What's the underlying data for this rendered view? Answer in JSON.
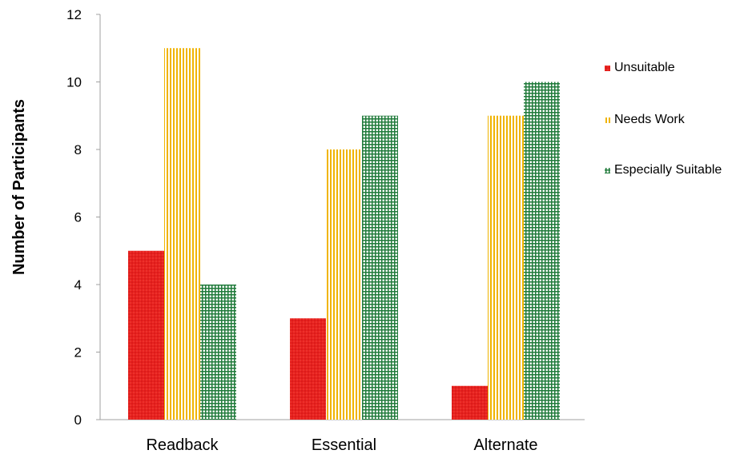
{
  "chart_data": {
    "type": "bar",
    "title": "",
    "xlabel": "",
    "ylabel": "Number of Participants",
    "categories": [
      "Readback",
      "Essential",
      "Alternate"
    ],
    "series": [
      {
        "name": "Unsuitable",
        "values": [
          5,
          3,
          1
        ],
        "color": "#e8211f",
        "pattern": "red-dots"
      },
      {
        "name": "Needs Work",
        "values": [
          11,
          8,
          9
        ],
        "color": "#f0b400",
        "pattern": "vertical-stripes"
      },
      {
        "name": "Especially Suitable",
        "values": [
          4,
          9,
          10
        ],
        "color": "#1f7a3a",
        "pattern": "grid"
      }
    ],
    "ylim": [
      0,
      12
    ],
    "yticks": [
      0,
      2,
      4,
      6,
      8,
      10,
      12
    ],
    "grid": false,
    "legend_position": "right"
  }
}
